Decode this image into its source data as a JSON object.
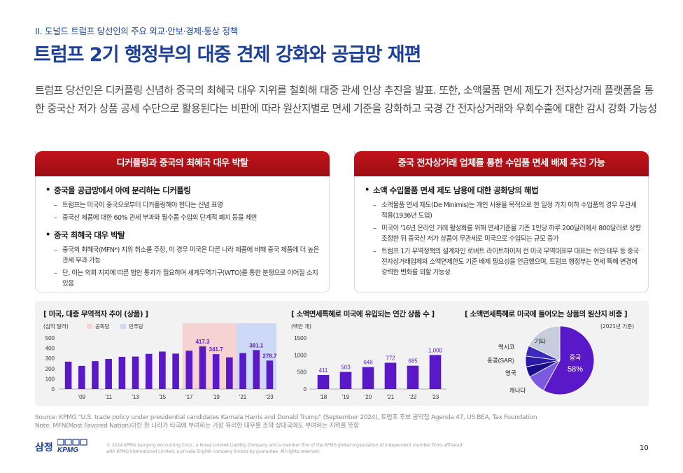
{
  "header": {
    "section_label": "II. 도널드 트럼프 당선인의 주요 외교·안보·경제·통상 정책",
    "title": "트럼프 2기 행정부의 대중 견제 강화와 공급망 재편"
  },
  "intro": "트럼프 당선인은 디커플링 신념하 중국의 최혜국 대우 지위를 철회해 대중 관세 인상 추진을 발표. 또한, 소액물품 면세 제도가 전자상거래 플랫폼을 통한 중국산 저가 상품 공세 수단으로 활용된다는 비판에 따라 원산지별로 면세 기준을 강화하고 국경 간 전자상거래와 우회수출에 대한 감시 강화 가능성",
  "left_panel": {
    "header": "디커플링과 중국의 최혜국 대우 박탈",
    "bullet1": "중국을 공급망에서 아예 분리하는 디커플링",
    "bullet1_sub1": "트럼프는 미국이 중국으로부터 디커플링해야 한다는 신념 표명",
    "bullet1_sub2": "중국산 제품에 대한 60% 관세 부과와 필수품 수입의 단계적 폐지 등을 제안",
    "bullet2": "중국 최혜국 대우 박탈",
    "bullet2_sub1": "중국의 최혜국(MFN*) 지위 취소를 주장, 이 경우 미국은 다른 나라 제품에 비해 중국 제품에 더 높은 관세 부과 가능",
    "bullet2_sub2": "단, 이는 의회 지지에 따른 법안 통과가 필요하며 세계무역기구(WTO)를 통한 분쟁으로 이어질 소지 있음"
  },
  "right_panel": {
    "header": "중국 전자상거래 업체를 통한 수입품 면세 배제 추진 가능",
    "bullet1": "소액 수입물품 면세 제도 남용에 대한 공화당의 해법",
    "sub1": "소액물품 면세 제도(De Minimis)는 개인 사용을 목적으로 한 일정 가치 이하 수입품의 경우 무관세 적용(1936년 도입)",
    "sub2": "미국이 '16년 온라인 거래 활성화를 위해 면세기준을 기존 1인당 하루 200달러에서 800달러로 상향 조정한 뒤 중국산 저가 상품이 무관세로 미국으로 수입되는 규모 증가",
    "sub3": "트럼프 1기 무역정책의 설계자인 로버트 라이트하이저 전 미국 무역대표부 대표는 쉬인·테무 등 중국 전자상거래업체의 소액면제한도 기준 배제 필요성을 언급했으며, 트럼프 행정부는 면세 특혜 변경에 강력한 변화를 꾀할 가능성"
  },
  "chart1": {
    "title": "[ 미국, 대중 무역적자 추이 (상품) ]",
    "unit": "(십억 달러)",
    "legend_rep": "공화당",
    "legend_dem": "민주당",
    "color_rep": "#f6d2d2",
    "color_dem": "#cdd9f7",
    "bar_color": "#5a19c9",
    "label_color": "#5a19c9"
  },
  "chart2": {
    "title": "[ 소액면세특혜로 미국에 유입되는 연간 상품 수 ]",
    "unit": "(백만 개)",
    "bar_color": "#5a19c9"
  },
  "chart3": {
    "title": "[ 소액면세특혜로 미국에 들어오는 상품의 원산지 비중 ]",
    "unit": "(2021년 기준)",
    "label_china": "중국",
    "label_china_pct": "58%"
  },
  "chart_data": [
    {
      "type": "bar",
      "title": "[ 미국, 대중 무역적자 추이 (상품) ]",
      "ylabel": "(십억 달러)",
      "ylim": [
        0,
        500
      ],
      "yticks": [
        0,
        100,
        200,
        300,
        400,
        500
      ],
      "x": [
        2008,
        2009,
        2010,
        2011,
        2012,
        2013,
        2014,
        2015,
        2016,
        2017,
        2018,
        2019,
        2020,
        2021,
        2022,
        2023
      ],
      "xtick_labels": [
        "'09",
        "'11",
        "'13",
        "'15",
        "'17",
        "'19",
        "'21",
        "'23"
      ],
      "xtick_years": [
        2009,
        2011,
        2013,
        2015,
        2017,
        2019,
        2021,
        2023
      ],
      "values": [
        268,
        227,
        273,
        295,
        315,
        318,
        344,
        367,
        347,
        375,
        417.3,
        341.7,
        310,
        352,
        381.1,
        278.7
      ],
      "labeled": {
        "2018": "417.3",
        "2019": "341.7",
        "2022": "381.1",
        "2023": "278.7"
      },
      "party_bands": [
        {
          "name": "공화당",
          "from": 2017,
          "to": 2020
        },
        {
          "name": "민주당",
          "from": 2021,
          "to": 2023
        }
      ]
    },
    {
      "type": "bar",
      "title": "[ 소액면세특혜로 미국에 유입되는 연간 상품 수 ]",
      "ylabel": "(백만 개)",
      "ylim": [
        0,
        1500
      ],
      "yticks": [
        0,
        500,
        1000,
        1500
      ],
      "categories": [
        "'18",
        "'19",
        "'20",
        "'21",
        "'22",
        "'23"
      ],
      "values": [
        411,
        503,
        646,
        772,
        685,
        1000
      ],
      "value_labels": [
        "411",
        "503",
        "646",
        "772",
        "685",
        "1,000"
      ]
    },
    {
      "type": "pie",
      "title": "[ 소액면세특혜로 미국에 들어오는 상품의 원산지 비중 ]",
      "labels": [
        "중국",
        "캐나다",
        "영국",
        "홍콩(SAR)",
        "멕시코",
        "기타"
      ],
      "values": [
        58,
        9,
        5,
        5,
        5,
        18
      ],
      "colors": [
        "#5a19c9",
        "#7b5ae0",
        "#180f8c",
        "#2a1aa8",
        "#3d2bc0",
        "#c6cddd"
      ]
    }
  ],
  "footer": {
    "source": "Source: KPMG \"U.S. trade policy under presidential candidates Kamala Harris and Donald Trump\" (September 2024), 트럼프 후보 공약집 Agenda 47, US BEA, Tax Foundation",
    "note": "Note: MFN(Most Favored Nation)이란 한 나라가 타국에 부여하는 가장 유리한 대우를 조약 상대국에도 부여하는 지위를 뜻함",
    "logo_text": "삼정",
    "logo_mark": "KPMG",
    "copyright": "© 2024 KPMG Samjong Accounting Corp., a Korea Limited Liability Company and a member firm of the KPMG global organization of independent member firms affiliated with KPMG International Limited, a private English company limited by guarantee. All rights reserved.",
    "page_number": "10"
  }
}
